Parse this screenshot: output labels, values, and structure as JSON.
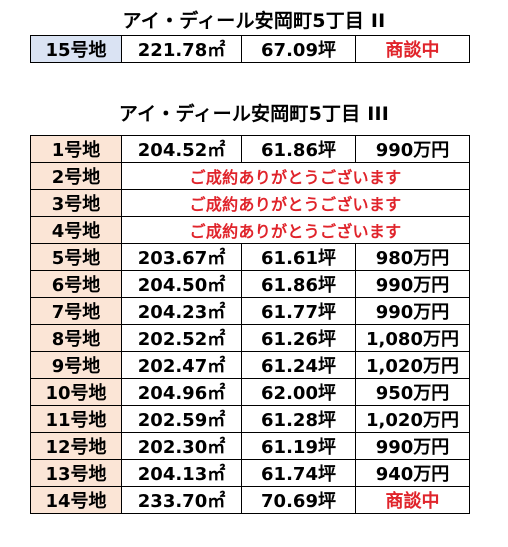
{
  "section1": {
    "title": "アイ・ディール安岡町5丁目 II",
    "rows": [
      {
        "lot": "15号地",
        "area_m2": "221.78㎡",
        "area_tsubo": "67.09坪",
        "price": "商談中",
        "price_red": true
      }
    ]
  },
  "section2": {
    "title": "アイ・ディール安岡町5丁目 III",
    "rows": [
      {
        "lot": "1号地",
        "area_m2": "204.52㎡",
        "area_tsubo": "61.86坪",
        "price": "990万円"
      },
      {
        "lot": "2号地",
        "contracted": "ご成約ありがとうございます"
      },
      {
        "lot": "3号地",
        "contracted": "ご成約ありがとうございます"
      },
      {
        "lot": "4号地",
        "contracted": "ご成約ありがとうございます"
      },
      {
        "lot": "5号地",
        "area_m2": "203.67㎡",
        "area_tsubo": "61.61坪",
        "price": "980万円"
      },
      {
        "lot": "6号地",
        "area_m2": "204.50㎡",
        "area_tsubo": "61.86坪",
        "price": "990万円"
      },
      {
        "lot": "7号地",
        "area_m2": "204.23㎡",
        "area_tsubo": "61.77坪",
        "price": "990万円"
      },
      {
        "lot": "8号地",
        "area_m2": "202.52㎡",
        "area_tsubo": "61.26坪",
        "price": "1,080万円"
      },
      {
        "lot": "9号地",
        "area_m2": "202.47㎡",
        "area_tsubo": "61.24坪",
        "price": "1,020万円"
      },
      {
        "lot": "10号地",
        "area_m2": "204.96㎡",
        "area_tsubo": "62.00坪",
        "price": "950万円"
      },
      {
        "lot": "11号地",
        "area_m2": "202.59㎡",
        "area_tsubo": "61.28坪",
        "price": "1,020万円"
      },
      {
        "lot": "12号地",
        "area_m2": "202.30㎡",
        "area_tsubo": "61.19坪",
        "price": "990万円"
      },
      {
        "lot": "13号地",
        "area_m2": "204.13㎡",
        "area_tsubo": "61.74坪",
        "price": "940万円"
      },
      {
        "lot": "14号地",
        "area_m2": "233.70㎡",
        "area_tsubo": "70.69坪",
        "price": "商談中",
        "price_red": true
      }
    ]
  }
}
